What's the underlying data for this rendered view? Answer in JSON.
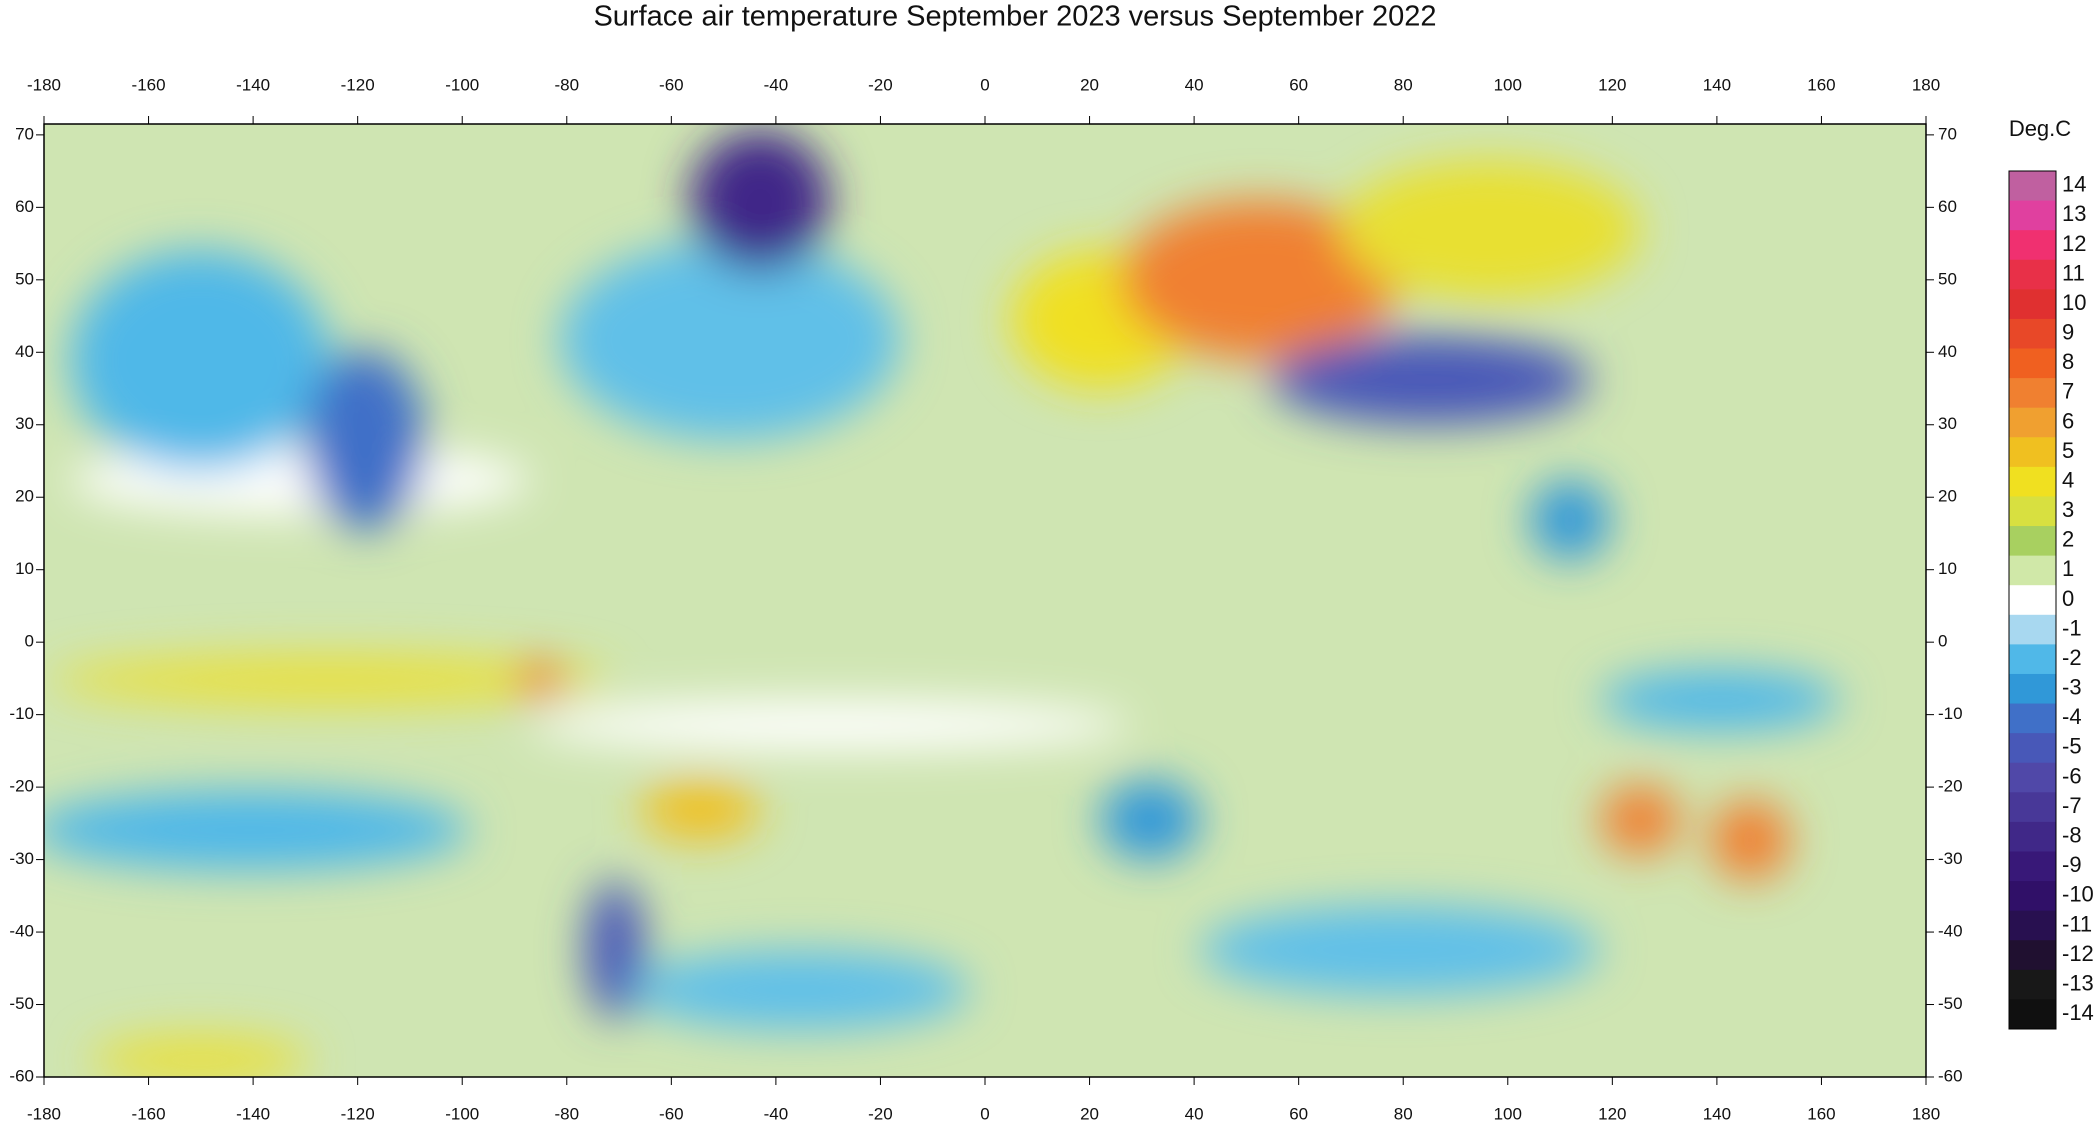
{
  "title": "Surface air temperature September 2023 versus September 2022",
  "xlim": [
    -180,
    180
  ],
  "ylim": [
    -60,
    71.5
  ],
  "xticks": [
    -180,
    -160,
    -140,
    -120,
    -100,
    -80,
    -60,
    -40,
    -20,
    0,
    20,
    40,
    60,
    80,
    100,
    120,
    140,
    160,
    180
  ],
  "yticks": [
    -60,
    -50,
    -40,
    -30,
    -20,
    -10,
    0,
    10,
    20,
    30,
    40,
    50,
    60,
    70
  ],
  "colorbar": {
    "label": "Deg.C",
    "ticks": [
      14,
      13,
      12,
      11,
      10,
      9,
      8,
      7,
      6,
      5,
      4,
      3,
      2,
      1,
      0,
      -1,
      -2,
      -3,
      -4,
      -5,
      -6,
      -7,
      -8,
      -9,
      -10,
      -11,
      -12,
      -13,
      -14
    ],
    "colors": [
      "#c060a0",
      "#e0409f",
      "#f03070",
      "#e83048",
      "#e03030",
      "#e84828",
      "#f06020",
      "#f08030",
      "#f0a030",
      "#f0c020",
      "#f0e020",
      "#d8e040",
      "#a8d060",
      "#d0e8a8",
      "#ffffff",
      "#a8d8f0",
      "#50b8e8",
      "#3098d8",
      "#4070c8",
      "#4858b8",
      "#5048a8",
      "#483898",
      "#402888",
      "#381878",
      "#301068",
      "#281050",
      "#201030",
      "#181818",
      "#101010"
    ]
  }
}
